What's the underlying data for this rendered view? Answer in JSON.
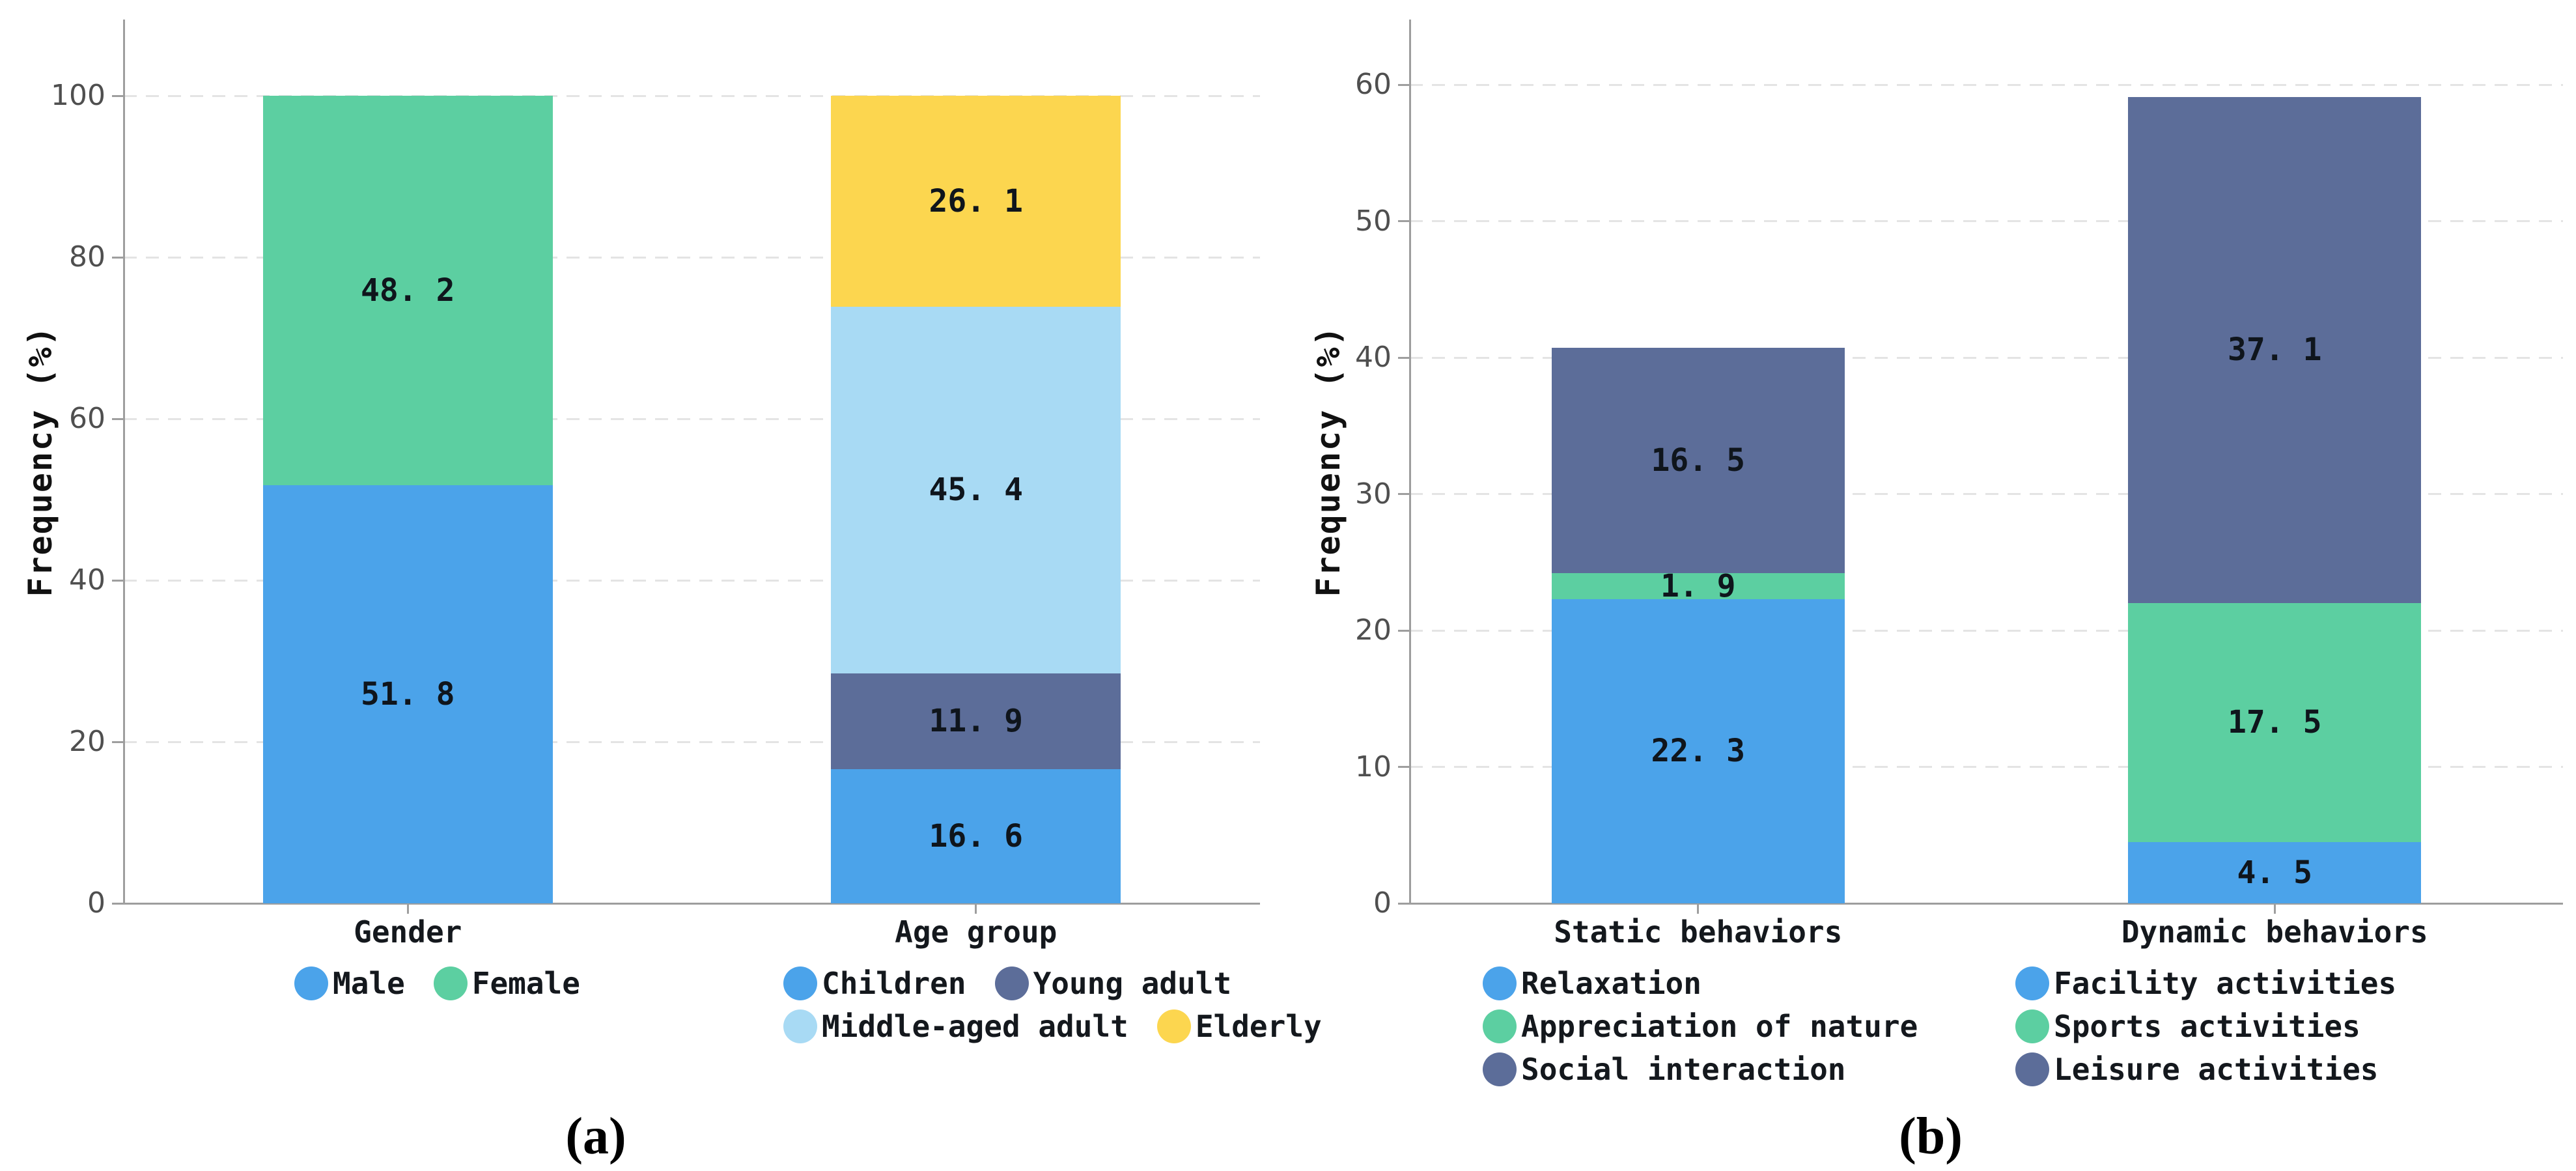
{
  "figure": {
    "background": "#ffffff"
  },
  "colors": {
    "blue": "#4BA3EA",
    "green": "#5CCFA1",
    "light_blue": "#A8DAF4",
    "slate": "#5C6D99",
    "yellow": "#FCD64F",
    "axis_line": "#9e9e9e",
    "gridline": "#e4e4e4",
    "ytick_text": "#4f4f4f",
    "mono_text": "#14181d",
    "value_text": "#0f151c",
    "caption_text": "#000000"
  },
  "chart_data": [
    {
      "type": "bar",
      "stacked": true,
      "title": "",
      "xlabel": "",
      "ylabel": "Frequency (%)",
      "ylim": [
        0,
        100
      ],
      "yticks": [
        0,
        20,
        40,
        60,
        80,
        100
      ],
      "grid": "dashed-horizontal",
      "legend_position": "bottom",
      "categories": [
        "Gender",
        "Age group"
      ],
      "bars": [
        {
          "category": "Gender",
          "segments": [
            {
              "label": "Male",
              "value": 51.8,
              "display": "51. 8",
              "color": "blue"
            },
            {
              "label": "Female",
              "value": 48.2,
              "display": "48. 2",
              "color": "green"
            }
          ]
        },
        {
          "category": "Age group",
          "segments": [
            {
              "label": "Children",
              "value": 16.6,
              "display": "16. 6",
              "color": "blue"
            },
            {
              "label": "Young adult",
              "value": 11.9,
              "display": "11. 9",
              "color": "slate"
            },
            {
              "label": "Middle-aged adult",
              "value": 45.4,
              "display": "45. 4",
              "color": "light_blue"
            },
            {
              "label": "Elderly",
              "value": 26.1,
              "display": "26. 1",
              "color": "yellow"
            }
          ]
        }
      ],
      "legend_groups": [
        {
          "rows": [
            [
              {
                "label": "Male",
                "color": "blue"
              },
              {
                "label": "Female",
                "color": "green"
              }
            ]
          ]
        },
        {
          "rows": [
            [
              {
                "label": "Children",
                "color": "blue"
              },
              {
                "label": "Young adult",
                "color": "slate"
              }
            ],
            [
              {
                "label": "Middle-aged adult",
                "color": "light_blue"
              },
              {
                "label": "Elderly",
                "color": "yellow"
              }
            ]
          ]
        }
      ],
      "caption": "(a)"
    },
    {
      "type": "bar",
      "stacked": true,
      "title": "",
      "xlabel": "",
      "ylabel": "Frequency (%)",
      "ylim": [
        0,
        60
      ],
      "yticks": [
        0,
        10,
        20,
        30,
        40,
        50,
        60
      ],
      "grid": "dashed-horizontal",
      "legend_position": "bottom",
      "categories": [
        "Static behaviors",
        "Dynamic behaviors"
      ],
      "bars": [
        {
          "category": "Static behaviors",
          "segments": [
            {
              "label": "Relaxation",
              "value": 22.3,
              "display": "22. 3",
              "color": "blue"
            },
            {
              "label": "Appreciation of nature",
              "value": 1.9,
              "display": "1. 9",
              "color": "green"
            },
            {
              "label": "Social interaction",
              "value": 16.5,
              "display": "16. 5",
              "color": "slate"
            }
          ]
        },
        {
          "category": "Dynamic behaviors",
          "segments": [
            {
              "label": "Facility activities",
              "value": 4.5,
              "display": "4. 5",
              "color": "blue"
            },
            {
              "label": "Sports activities",
              "value": 17.5,
              "display": "17. 5",
              "color": "green"
            },
            {
              "label": "Leisure activities",
              "value": 37.1,
              "display": "37. 1",
              "color": "slate"
            }
          ]
        }
      ],
      "legend_groups": [
        {
          "rows": [
            [
              {
                "label": "Relaxation",
                "color": "blue"
              }
            ],
            [
              {
                "label": "Appreciation of nature",
                "color": "green"
              }
            ],
            [
              {
                "label": "Social interaction",
                "color": "slate"
              }
            ]
          ]
        },
        {
          "rows": [
            [
              {
                "label": "Facility activities",
                "color": "blue"
              }
            ],
            [
              {
                "label": "Sports activities",
                "color": "green"
              }
            ],
            [
              {
                "label": "Leisure activities",
                "color": "slate"
              }
            ]
          ]
        }
      ],
      "caption": "(b)"
    }
  ]
}
